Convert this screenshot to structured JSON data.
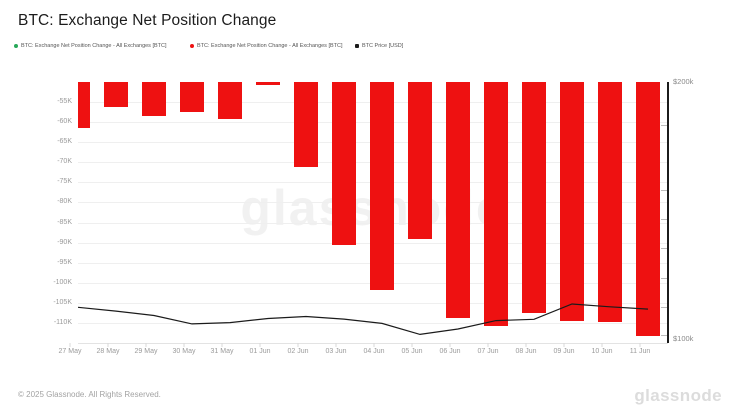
{
  "title": "BTC: Exchange Net Position Change",
  "legend": [
    {
      "label": "BTC: Exchange Net Position Change - All Exchanges [BTC]",
      "color": "#27a859"
    },
    {
      "label": "BTC: Exchange Net Position Change - All Exchanges [BTC]",
      "color": "#ee1111"
    },
    {
      "label": "BTC Price [USD]",
      "color": "#1b1b1b"
    }
  ],
  "watermark": "glassnode",
  "footer": {
    "copyright": "© 2025 Glassnode. All Rights Reserved.",
    "brand": "glassnode"
  },
  "chart_data": {
    "type": "bar",
    "title": "BTC: Exchange Net Position Change",
    "categories": [
      "27 May",
      "28 May",
      "29 May",
      "30 May",
      "31 May",
      "01 Jun",
      "02 Jun",
      "03 Jun",
      "04 Jun",
      "05 Jun",
      "06 Jun",
      "07 Jun",
      "08 Jun",
      "09 Jun",
      "10 Jun",
      "11 Jun"
    ],
    "series": [
      {
        "name": "BTC: Exchange Net Position Change - All Exchanges [BTC]",
        "type": "bar",
        "color": "#ee1111",
        "unit": "K BTC",
        "values": [
          -61.5,
          -56.3,
          -58.4,
          -57.5,
          -59.3,
          -50.8,
          -71.2,
          -90.6,
          -101.7,
          -89.0,
          -108.7,
          -110.8,
          -107.5,
          -109.4,
          -109.7,
          -113.2
        ]
      },
      {
        "name": "BTC Price [USD]",
        "type": "line",
        "color": "#1b1b1b",
        "unit": "k USD",
        "values": [
          112.0,
          110.5,
          108.8,
          105.5,
          106.0,
          107.6,
          108.4,
          107.4,
          105.7,
          101.4,
          103.5,
          106.8,
          107.3,
          113.3,
          112.2,
          111.3
        ]
      }
    ],
    "left_axis": {
      "tick_labels": [
        "-55K",
        "-60K",
        "-65K",
        "-70K",
        "-75K",
        "-80K",
        "-85K",
        "-90K",
        "-95K",
        "-100K",
        "-105K",
        "-110K"
      ],
      "range": [
        -115,
        -50
      ]
    },
    "right_axis": {
      "top_label": "$200k",
      "bottom_label": "$100k",
      "range": [
        100,
        200
      ]
    },
    "grid": "horizontal",
    "legend_position": "top"
  }
}
